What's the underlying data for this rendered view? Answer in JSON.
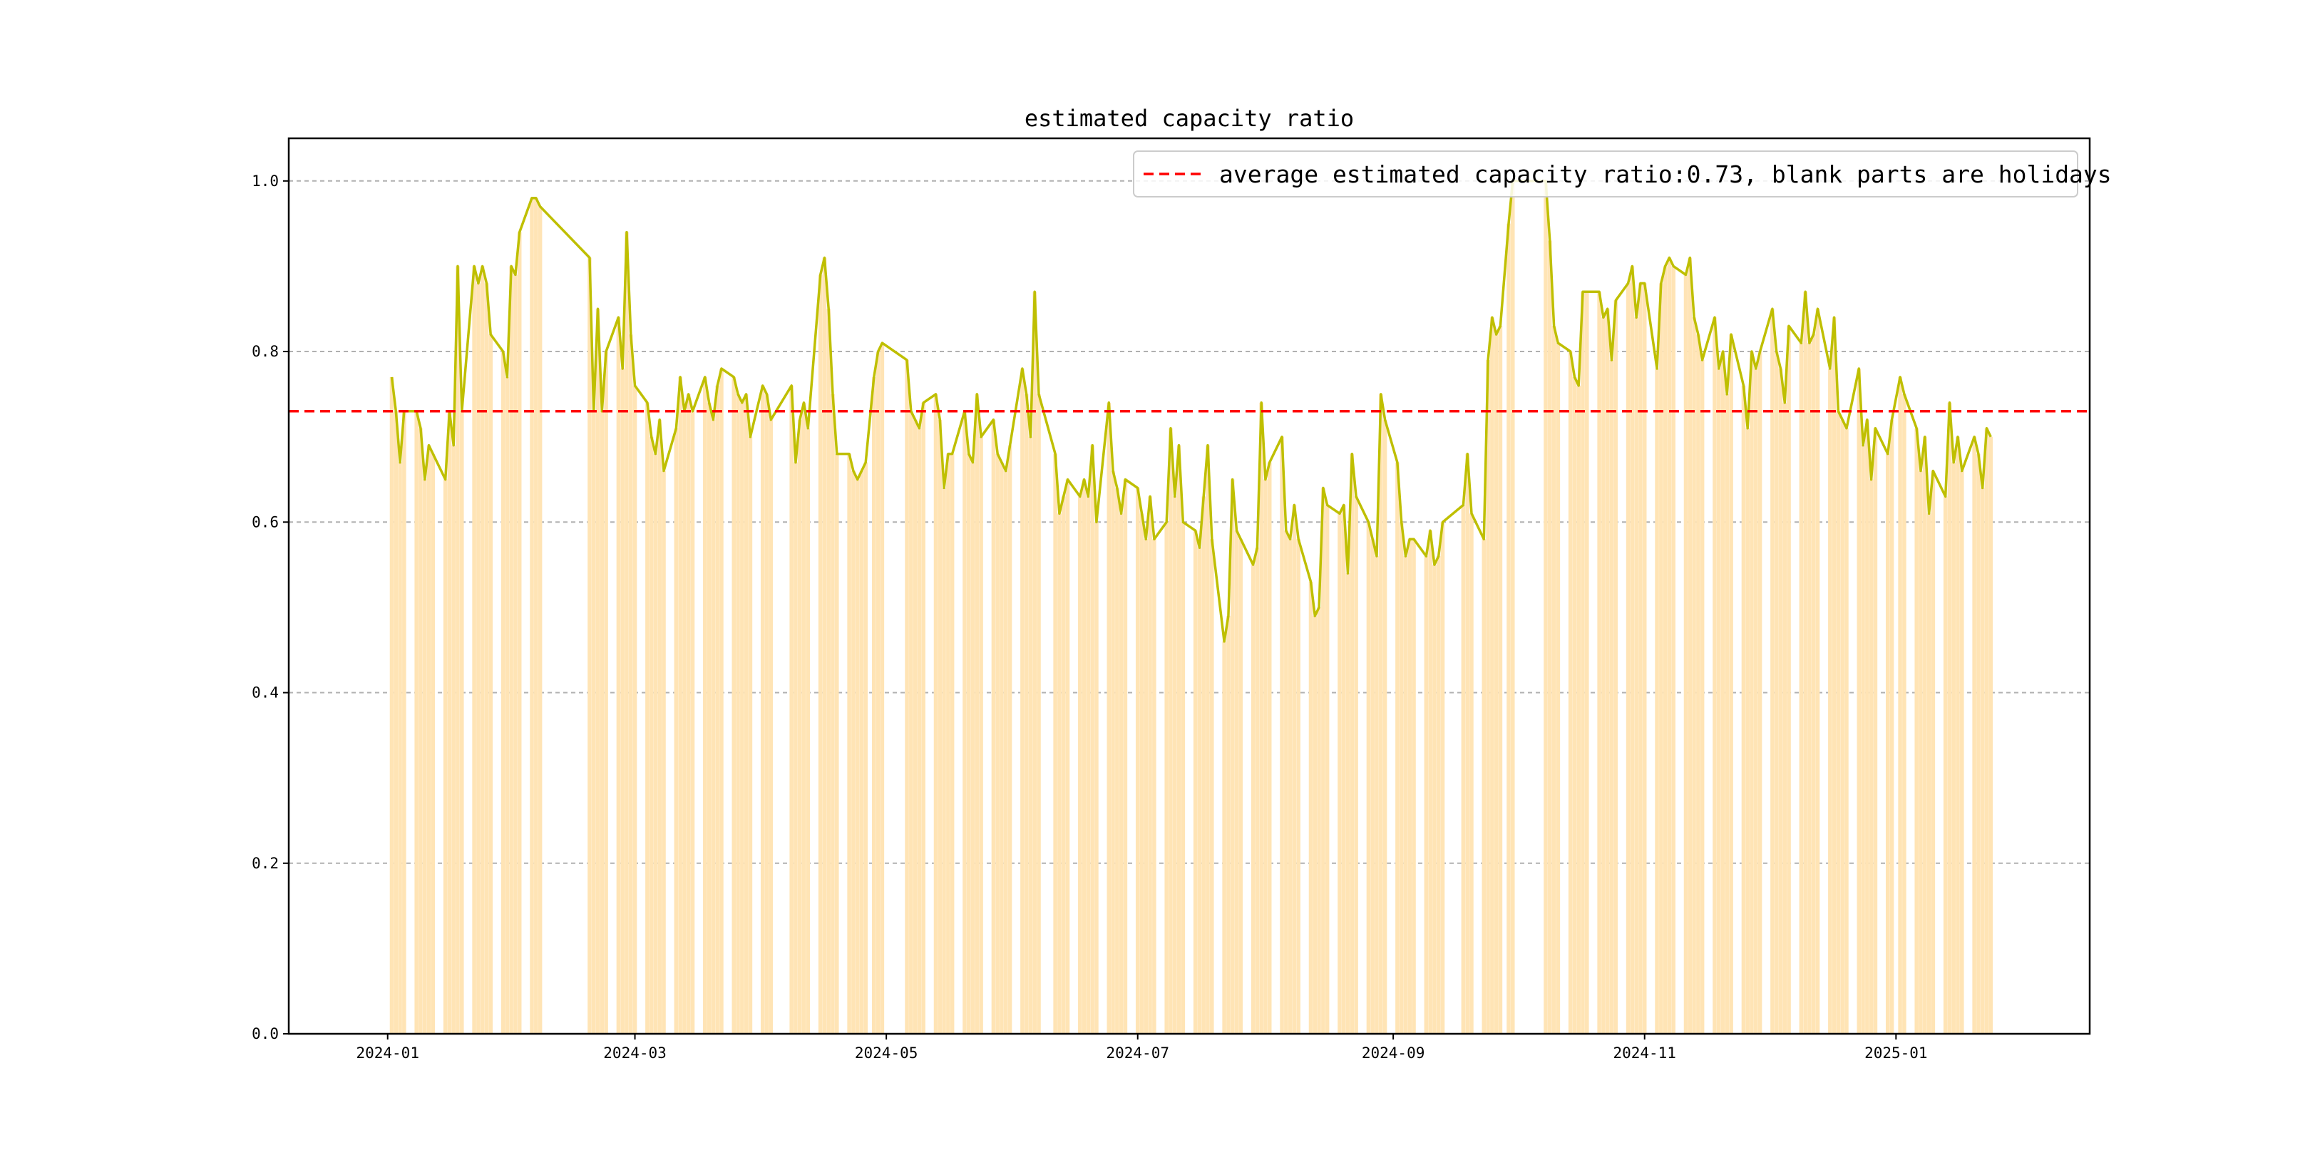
{
  "chart_data": {
    "type": "bar",
    "title": "estimated capacity ratio",
    "xlabel": "",
    "ylabel": "",
    "ylim": [
      0.0,
      1.05
    ],
    "yticks": [
      "0.0",
      "0.2",
      "0.4",
      "0.6",
      "0.8",
      "1.0"
    ],
    "xticks": [
      "2024-01",
      "2024-03",
      "2024-05",
      "2024-07",
      "2024-09",
      "2024-11",
      "2025-01"
    ],
    "grid": "y-dashed",
    "legend": {
      "placement": "top-right",
      "entries": [
        "average estimated capacity ratio:0.73, blank parts are holidays"
      ]
    },
    "average": 0.73,
    "colors": {
      "bars": "#ffe4b5",
      "line": "#bfbf00",
      "average": "#ff0000",
      "grid": "#b0b0b0"
    },
    "series": [
      {
        "values": [
          [
            "2024-01-02",
            0.77
          ],
          [
            "2024-01-03",
            0.73
          ],
          [
            "2024-01-04",
            0.67
          ],
          [
            "2024-01-05",
            0.73
          ],
          [
            "2024-01-08",
            0.73
          ],
          [
            "2024-01-09",
            0.71
          ],
          [
            "2024-01-10",
            0.65
          ],
          [
            "2024-01-11",
            0.69
          ],
          [
            "2024-01-12",
            0.68
          ],
          [
            "2024-01-15",
            0.65
          ],
          [
            "2024-01-16",
            0.73
          ],
          [
            "2024-01-17",
            0.69
          ],
          [
            "2024-01-18",
            0.9
          ],
          [
            "2024-01-19",
            0.73
          ],
          [
            "2024-01-22",
            0.9
          ],
          [
            "2024-01-23",
            0.88
          ],
          [
            "2024-01-24",
            0.9
          ],
          [
            "2024-01-25",
            0.88
          ],
          [
            "2024-01-26",
            0.82
          ],
          [
            "2024-01-29",
            0.8
          ],
          [
            "2024-01-30",
            0.77
          ],
          [
            "2024-01-31",
            0.9
          ],
          [
            "2024-02-01",
            0.89
          ],
          [
            "2024-02-02",
            0.94
          ],
          [
            "2024-02-05",
            0.98
          ],
          [
            "2024-02-06",
            0.98
          ],
          [
            "2024-02-07",
            0.97
          ],
          [
            "2024-02-19",
            0.91
          ],
          [
            "2024-02-20",
            0.73
          ],
          [
            "2024-02-21",
            0.85
          ],
          [
            "2024-02-22",
            0.73
          ],
          [
            "2024-02-23",
            0.8
          ],
          [
            "2024-02-26",
            0.84
          ],
          [
            "2024-02-27",
            0.78
          ],
          [
            "2024-02-28",
            0.94
          ],
          [
            "2024-02-29",
            0.82
          ],
          [
            "2024-03-01",
            0.76
          ],
          [
            "2024-03-04",
            0.74
          ],
          [
            "2024-03-05",
            0.7
          ],
          [
            "2024-03-06",
            0.68
          ],
          [
            "2024-03-07",
            0.72
          ],
          [
            "2024-03-08",
            0.66
          ],
          [
            "2024-03-11",
            0.71
          ],
          [
            "2024-03-12",
            0.77
          ],
          [
            "2024-03-13",
            0.73
          ],
          [
            "2024-03-14",
            0.75
          ],
          [
            "2024-03-15",
            0.73
          ],
          [
            "2024-03-18",
            0.77
          ],
          [
            "2024-03-19",
            0.74
          ],
          [
            "2024-03-20",
            0.72
          ],
          [
            "2024-03-21",
            0.76
          ],
          [
            "2024-03-22",
            0.78
          ],
          [
            "2024-03-25",
            0.77
          ],
          [
            "2024-03-26",
            0.75
          ],
          [
            "2024-03-27",
            0.74
          ],
          [
            "2024-03-28",
            0.75
          ],
          [
            "2024-03-29",
            0.7
          ],
          [
            "2024-04-01",
            0.76
          ],
          [
            "2024-04-02",
            0.75
          ],
          [
            "2024-04-03",
            0.72
          ],
          [
            "2024-04-08",
            0.76
          ],
          [
            "2024-04-09",
            0.67
          ],
          [
            "2024-04-10",
            0.72
          ],
          [
            "2024-04-11",
            0.74
          ],
          [
            "2024-04-12",
            0.71
          ],
          [
            "2024-04-15",
            0.89
          ],
          [
            "2024-04-16",
            0.91
          ],
          [
            "2024-04-17",
            0.85
          ],
          [
            "2024-04-18",
            0.75
          ],
          [
            "2024-04-19",
            0.68
          ],
          [
            "2024-04-22",
            0.68
          ],
          [
            "2024-04-23",
            0.66
          ],
          [
            "2024-04-24",
            0.65
          ],
          [
            "2024-04-25",
            0.66
          ],
          [
            "2024-04-26",
            0.67
          ],
          [
            "2024-04-28",
            0.77
          ],
          [
            "2024-04-29",
            0.8
          ],
          [
            "2024-04-30",
            0.81
          ],
          [
            "2024-05-06",
            0.79
          ],
          [
            "2024-05-07",
            0.73
          ],
          [
            "2024-05-08",
            0.72
          ],
          [
            "2024-05-09",
            0.71
          ],
          [
            "2024-05-10",
            0.74
          ],
          [
            "2024-05-13",
            0.75
          ],
          [
            "2024-05-14",
            0.72
          ],
          [
            "2024-05-15",
            0.64
          ],
          [
            "2024-05-16",
            0.68
          ],
          [
            "2024-05-17",
            0.68
          ],
          [
            "2024-05-20",
            0.73
          ],
          [
            "2024-05-21",
            0.68
          ],
          [
            "2024-05-22",
            0.67
          ],
          [
            "2024-05-23",
            0.75
          ],
          [
            "2024-05-24",
            0.7
          ],
          [
            "2024-05-27",
            0.72
          ],
          [
            "2024-05-28",
            0.68
          ],
          [
            "2024-05-29",
            0.67
          ],
          [
            "2024-05-30",
            0.66
          ],
          [
            "2024-05-31",
            0.69
          ],
          [
            "2024-06-03",
            0.78
          ],
          [
            "2024-06-04",
            0.75
          ],
          [
            "2024-06-05",
            0.7
          ],
          [
            "2024-06-06",
            0.87
          ],
          [
            "2024-06-07",
            0.75
          ],
          [
            "2024-06-11",
            0.68
          ],
          [
            "2024-06-12",
            0.61
          ],
          [
            "2024-06-13",
            0.63
          ],
          [
            "2024-06-14",
            0.65
          ],
          [
            "2024-06-17",
            0.63
          ],
          [
            "2024-06-18",
            0.65
          ],
          [
            "2024-06-19",
            0.63
          ],
          [
            "2024-06-20",
            0.69
          ],
          [
            "2024-06-21",
            0.6
          ],
          [
            "2024-06-24",
            0.74
          ],
          [
            "2024-06-25",
            0.66
          ],
          [
            "2024-06-26",
            0.64
          ],
          [
            "2024-06-27",
            0.61
          ],
          [
            "2024-06-28",
            0.65
          ],
          [
            "2024-07-01",
            0.64
          ],
          [
            "2024-07-02",
            0.61
          ],
          [
            "2024-07-03",
            0.58
          ],
          [
            "2024-07-04",
            0.63
          ],
          [
            "2024-07-05",
            0.58
          ],
          [
            "2024-07-08",
            0.6
          ],
          [
            "2024-07-09",
            0.71
          ],
          [
            "2024-07-10",
            0.63
          ],
          [
            "2024-07-11",
            0.69
          ],
          [
            "2024-07-12",
            0.6
          ],
          [
            "2024-07-15",
            0.59
          ],
          [
            "2024-07-16",
            0.57
          ],
          [
            "2024-07-17",
            0.63
          ],
          [
            "2024-07-18",
            0.69
          ],
          [
            "2024-07-19",
            0.58
          ],
          [
            "2024-07-22",
            0.46
          ],
          [
            "2024-07-23",
            0.49
          ],
          [
            "2024-07-24",
            0.65
          ],
          [
            "2024-07-25",
            0.59
          ],
          [
            "2024-07-26",
            0.58
          ],
          [
            "2024-07-29",
            0.55
          ],
          [
            "2024-07-30",
            0.57
          ],
          [
            "2024-07-31",
            0.74
          ],
          [
            "2024-08-01",
            0.65
          ],
          [
            "2024-08-02",
            0.67
          ],
          [
            "2024-08-05",
            0.7
          ],
          [
            "2024-08-06",
            0.59
          ],
          [
            "2024-08-07",
            0.58
          ],
          [
            "2024-08-08",
            0.62
          ],
          [
            "2024-08-09",
            0.58
          ],
          [
            "2024-08-12",
            0.53
          ],
          [
            "2024-08-13",
            0.49
          ],
          [
            "2024-08-14",
            0.5
          ],
          [
            "2024-08-15",
            0.64
          ],
          [
            "2024-08-16",
            0.62
          ],
          [
            "2024-08-19",
            0.61
          ],
          [
            "2024-08-20",
            0.62
          ],
          [
            "2024-08-21",
            0.54
          ],
          [
            "2024-08-22",
            0.68
          ],
          [
            "2024-08-23",
            0.63
          ],
          [
            "2024-08-26",
            0.6
          ],
          [
            "2024-08-27",
            0.58
          ],
          [
            "2024-08-28",
            0.56
          ],
          [
            "2024-08-29",
            0.75
          ],
          [
            "2024-08-30",
            0.72
          ],
          [
            "2024-09-02",
            0.67
          ],
          [
            "2024-09-03",
            0.6
          ],
          [
            "2024-09-04",
            0.56
          ],
          [
            "2024-09-05",
            0.58
          ],
          [
            "2024-09-06",
            0.58
          ],
          [
            "2024-09-09",
            0.56
          ],
          [
            "2024-09-10",
            0.59
          ],
          [
            "2024-09-11",
            0.55
          ],
          [
            "2024-09-12",
            0.56
          ],
          [
            "2024-09-13",
            0.6
          ],
          [
            "2024-09-18",
            0.62
          ],
          [
            "2024-09-19",
            0.68
          ],
          [
            "2024-09-20",
            0.61
          ],
          [
            "2024-09-23",
            0.58
          ],
          [
            "2024-09-24",
            0.79
          ],
          [
            "2024-09-25",
            0.84
          ],
          [
            "2024-09-26",
            0.82
          ],
          [
            "2024-09-27",
            0.83
          ],
          [
            "2024-09-29",
            0.95
          ],
          [
            "2024-09-30",
            1.0
          ],
          [
            "2024-10-08",
            1.0
          ],
          [
            "2024-10-09",
            0.93
          ],
          [
            "2024-10-10",
            0.83
          ],
          [
            "2024-10-11",
            0.81
          ],
          [
            "2024-10-14",
            0.8
          ],
          [
            "2024-10-15",
            0.77
          ],
          [
            "2024-10-16",
            0.76
          ],
          [
            "2024-10-17",
            0.87
          ],
          [
            "2024-10-18",
            0.87
          ],
          [
            "2024-10-21",
            0.87
          ],
          [
            "2024-10-22",
            0.84
          ],
          [
            "2024-10-23",
            0.85
          ],
          [
            "2024-10-24",
            0.79
          ],
          [
            "2024-10-25",
            0.86
          ],
          [
            "2024-10-28",
            0.88
          ],
          [
            "2024-10-29",
            0.9
          ],
          [
            "2024-10-30",
            0.84
          ],
          [
            "2024-10-31",
            0.88
          ],
          [
            "2024-11-01",
            0.88
          ],
          [
            "2024-11-04",
            0.78
          ],
          [
            "2024-11-05",
            0.88
          ],
          [
            "2024-11-06",
            0.9
          ],
          [
            "2024-11-07",
            0.91
          ],
          [
            "2024-11-08",
            0.9
          ],
          [
            "2024-11-11",
            0.89
          ],
          [
            "2024-11-12",
            0.91
          ],
          [
            "2024-11-13",
            0.84
          ],
          [
            "2024-11-14",
            0.82
          ],
          [
            "2024-11-15",
            0.79
          ],
          [
            "2024-11-18",
            0.84
          ],
          [
            "2024-11-19",
            0.78
          ],
          [
            "2024-11-20",
            0.8
          ],
          [
            "2024-11-21",
            0.75
          ],
          [
            "2024-11-22",
            0.82
          ],
          [
            "2024-11-25",
            0.76
          ],
          [
            "2024-11-26",
            0.71
          ],
          [
            "2024-11-27",
            0.8
          ],
          [
            "2024-11-28",
            0.78
          ],
          [
            "2024-11-29",
            0.8
          ],
          [
            "2024-12-02",
            0.85
          ],
          [
            "2024-12-03",
            0.8
          ],
          [
            "2024-12-04",
            0.78
          ],
          [
            "2024-12-05",
            0.74
          ],
          [
            "2024-12-06",
            0.83
          ],
          [
            "2024-12-09",
            0.81
          ],
          [
            "2024-12-10",
            0.87
          ],
          [
            "2024-12-11",
            0.81
          ],
          [
            "2024-12-12",
            0.82
          ],
          [
            "2024-12-13",
            0.85
          ],
          [
            "2024-12-16",
            0.78
          ],
          [
            "2024-12-17",
            0.84
          ],
          [
            "2024-12-18",
            0.73
          ],
          [
            "2024-12-19",
            0.72
          ],
          [
            "2024-12-20",
            0.71
          ],
          [
            "2024-12-23",
            0.78
          ],
          [
            "2024-12-24",
            0.69
          ],
          [
            "2024-12-25",
            0.72
          ],
          [
            "2024-12-26",
            0.65
          ],
          [
            "2024-12-27",
            0.71
          ],
          [
            "2024-12-30",
            0.68
          ],
          [
            "2024-12-31",
            0.72
          ],
          [
            "2025-01-02",
            0.77
          ],
          [
            "2025-01-03",
            0.75
          ],
          [
            "2025-01-06",
            0.71
          ],
          [
            "2025-01-07",
            0.66
          ],
          [
            "2025-01-08",
            0.7
          ],
          [
            "2025-01-09",
            0.61
          ],
          [
            "2025-01-10",
            0.66
          ],
          [
            "2025-01-13",
            0.63
          ],
          [
            "2025-01-14",
            0.74
          ],
          [
            "2025-01-15",
            0.67
          ],
          [
            "2025-01-16",
            0.7
          ],
          [
            "2025-01-17",
            0.66
          ],
          [
            "2025-01-20",
            0.7
          ],
          [
            "2025-01-21",
            0.68
          ],
          [
            "2025-01-22",
            0.64
          ],
          [
            "2025-01-23",
            0.71
          ],
          [
            "2025-01-24",
            0.7
          ]
        ]
      }
    ]
  }
}
